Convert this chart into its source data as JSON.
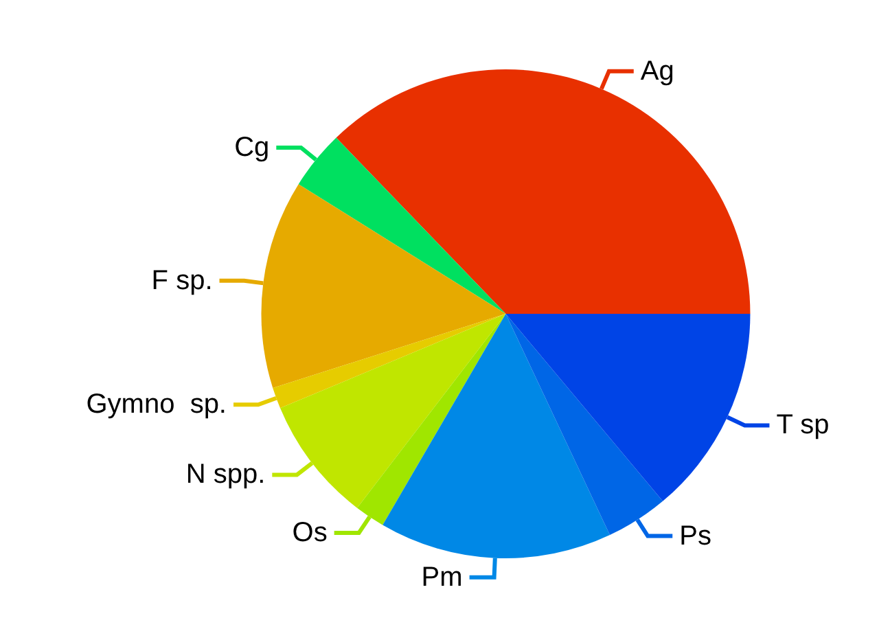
{
  "chart_data": {
    "type": "pie",
    "categories": [
      "Ag",
      "Cg",
      "F sp.",
      "Gymno  sp.",
      "N spp.",
      "Os",
      "Pm",
      "Ps",
      "T sp"
    ],
    "values": [
      37.2,
      3.9,
      13.8,
      1.4,
      8.3,
      2.0,
      15.4,
      4.1,
      13.9
    ],
    "colors": [
      "#e83000",
      "#00e060",
      "#e6aa00",
      "#e6cc00",
      "#c0e600",
      "#a0e600",
      "#0088e6",
      "#0066e6",
      "#0044e6"
    ]
  }
}
